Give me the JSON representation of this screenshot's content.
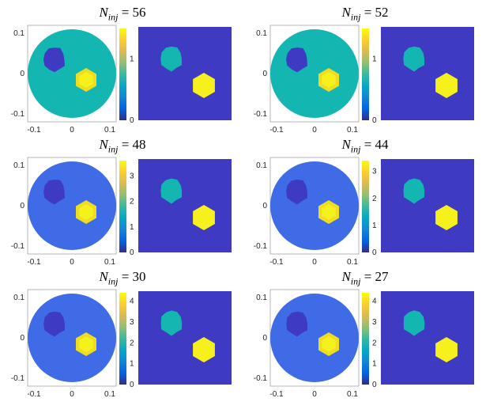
{
  "panels": [
    {
      "n": "56",
      "cbar_ticks": [
        "1",
        "0"
      ],
      "cbar_max": 1.5
    },
    {
      "n": "52",
      "cbar_ticks": [
        "1",
        "0"
      ],
      "cbar_max": 1.5
    },
    {
      "n": "48",
      "cbar_ticks": [
        "3",
        "2",
        "1",
        "0"
      ],
      "cbar_max": 3.6
    },
    {
      "n": "44",
      "cbar_ticks": [
        "3",
        "2",
        "1",
        "0"
      ],
      "cbar_max": 3.4
    },
    {
      "n": "30",
      "cbar_ticks": [
        "4",
        "3",
        "2",
        "1",
        "0"
      ],
      "cbar_max": 4.4
    },
    {
      "n": "27",
      "cbar_ticks": [
        "4",
        "3",
        "2",
        "1",
        "0"
      ],
      "cbar_max": 4.4
    }
  ],
  "title_symbol": "N",
  "title_subscript": "inj",
  "axis": {
    "y_ticks": [
      "0.1",
      "0",
      "-0.1"
    ],
    "x_ticks": [
      "-0.1",
      "0",
      "0.1"
    ]
  },
  "colors": {
    "background_low": "#3e3ac1",
    "mid": "#13b6b0",
    "high": "#f6f01c",
    "blue_med": "#3f6be6"
  }
}
